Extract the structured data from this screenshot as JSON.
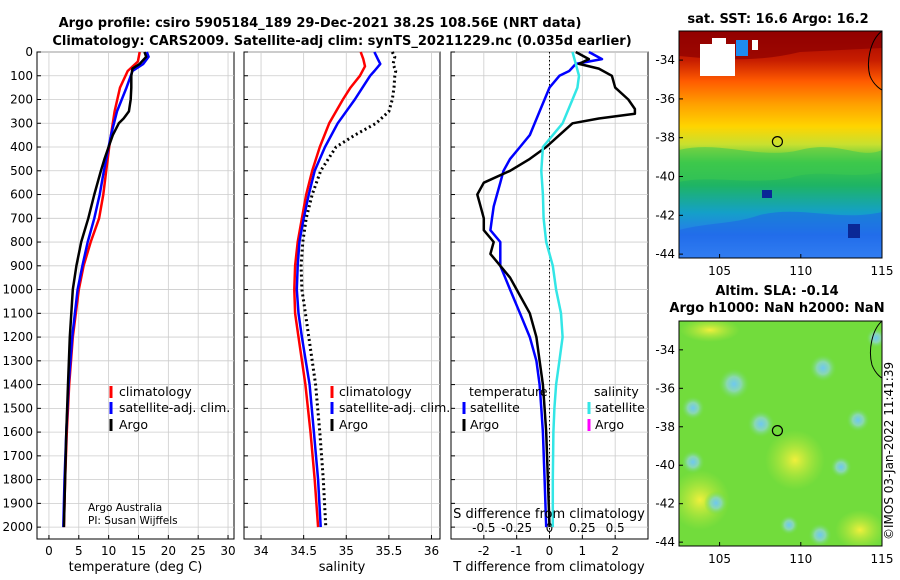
{
  "header": {
    "line1": "Argo profile: csiro 5905184_189 29-Dec-2021 38.2S 108.56E (NRT data)",
    "line2": "Climatology: CARS2009. Satellite-adj clim: synTS_20211229.nc (0.035d earlier)"
  },
  "colors": {
    "climatology": "#ff0000",
    "satellite": "#0000ff",
    "argo": "#000000",
    "sat_salinity": "#33e6e6",
    "argo_salinity": "#ff00ff"
  },
  "credit": {
    "line1": "Argo Australia",
    "line2": "PI: Susan Wijffels"
  },
  "stamp": "©IMOS 03-Jan-2022 11:41:39",
  "chart_data": [
    {
      "id": "temperature",
      "type": "line",
      "xlabel": "temperature (deg C)",
      "xlim": [
        -2,
        31
      ],
      "xticks": [
        0,
        5,
        10,
        15,
        20,
        25,
        30
      ],
      "xtick_labels": [
        "0",
        "5",
        "10",
        "15",
        "20",
        "25",
        "30"
      ],
      "ylim": [
        0,
        2050
      ],
      "yticks": [
        0,
        100,
        200,
        300,
        400,
        500,
        600,
        700,
        800,
        900,
        1000,
        1100,
        1200,
        1300,
        1400,
        1500,
        1600,
        1700,
        1800,
        1900,
        2000
      ],
      "ytick_labels": [
        "0",
        "100",
        "200",
        "300",
        "400",
        "500",
        "600",
        "700",
        "800",
        "900",
        "1000",
        "1100",
        "1200",
        "1300",
        "1400",
        "1500",
        "1600",
        "1700",
        "1800",
        "1900",
        "2000"
      ],
      "legend": [
        "climatology",
        "satellite-adj. clim.",
        "Argo"
      ],
      "series": [
        {
          "name": "climatology",
          "color": "#ff0000",
          "dash": false,
          "depth": [
            0,
            40,
            80,
            150,
            250,
            350,
            400,
            500,
            600,
            700,
            800,
            900,
            1000,
            1200,
            1400,
            1600,
            1800,
            2000
          ],
          "values": [
            15.2,
            14.9,
            13.2,
            11.9,
            11.0,
            10.4,
            10.1,
            9.6,
            9.1,
            8.4,
            7.0,
            5.8,
            5.0,
            4.0,
            3.4,
            3.0,
            2.7,
            2.5
          ]
        },
        {
          "name": "satellite-adj. clim.",
          "color": "#0000ff",
          "dash": false,
          "depth": [
            0,
            20,
            50,
            80,
            150,
            250,
            350,
            400,
            500,
            600,
            700,
            800,
            900,
            1000,
            1200,
            1400,
            1600,
            1800,
            2000
          ],
          "values": [
            16.4,
            16.7,
            15.8,
            14.0,
            13.0,
            11.4,
            10.4,
            10.0,
            9.2,
            8.5,
            7.6,
            6.5,
            5.6,
            4.8,
            3.9,
            3.3,
            2.9,
            2.6,
            2.4
          ]
        },
        {
          "name": "Argo",
          "color": "#000000",
          "dash": false,
          "depth": [
            0,
            20,
            50,
            70,
            100,
            150,
            200,
            250,
            280,
            300,
            350,
            400,
            450,
            500,
            600,
            700,
            800,
            900,
            1000,
            1200,
            1400,
            1600,
            1800,
            2000
          ],
          "values": [
            16.0,
            16.3,
            15.2,
            14.0,
            13.8,
            13.8,
            13.7,
            13.4,
            12.5,
            11.7,
            10.7,
            10.0,
            9.3,
            8.7,
            7.6,
            6.6,
            5.4,
            4.6,
            4.0,
            3.5,
            3.2,
            2.9,
            2.7,
            2.5
          ]
        }
      ]
    },
    {
      "id": "salinity",
      "type": "line",
      "xlabel": "salinity",
      "xlim": [
        33.8,
        36.1
      ],
      "xticks": [
        34,
        34.5,
        35,
        35.5,
        36
      ],
      "xtick_labels": [
        "34",
        "34.5",
        "35",
        "35.5",
        "36"
      ],
      "ylim": [
        0,
        2050
      ],
      "legend": [
        "climatology",
        "satellite-adj. clim.",
        "Argo"
      ],
      "series": [
        {
          "name": "climatology",
          "color": "#ff0000",
          "dash": false,
          "depth": [
            0,
            30,
            60,
            100,
            150,
            200,
            300,
            400,
            500,
            600,
            700,
            800,
            900,
            1000,
            1100,
            1200,
            1400,
            1600,
            1800,
            2000
          ],
          "values": [
            35.17,
            35.2,
            35.22,
            35.16,
            35.05,
            34.96,
            34.8,
            34.69,
            34.6,
            34.53,
            34.48,
            34.43,
            34.4,
            34.39,
            34.4,
            34.44,
            34.52,
            34.58,
            34.63,
            34.67
          ]
        },
        {
          "name": "satellite-adj. clim.",
          "color": "#0000ff",
          "dash": false,
          "depth": [
            0,
            30,
            50,
            80,
            100,
            150,
            200,
            300,
            400,
            500,
            600,
            700,
            800,
            900,
            1000,
            1100,
            1200,
            1400,
            1600,
            1800,
            2000
          ],
          "values": [
            35.33,
            35.37,
            35.4,
            35.33,
            35.28,
            35.19,
            35.1,
            34.9,
            34.75,
            34.63,
            34.56,
            34.5,
            34.45,
            34.43,
            34.42,
            34.44,
            34.48,
            34.57,
            34.62,
            34.67,
            34.7
          ]
        },
        {
          "name": "Argo",
          "color": "#000000",
          "dash": true,
          "depth": [
            0,
            20,
            50,
            80,
            100,
            150,
            200,
            250,
            300,
            350,
            400,
            500,
            600,
            700,
            800,
            900,
            1000,
            1100,
            1200,
            1400,
            1600,
            1800,
            2000
          ],
          "values": [
            35.54,
            35.57,
            35.55,
            35.58,
            35.57,
            35.56,
            35.54,
            35.5,
            35.35,
            35.1,
            34.88,
            34.7,
            34.6,
            34.53,
            34.49,
            34.47,
            34.48,
            34.52,
            34.56,
            34.64,
            34.69,
            34.73,
            34.76
          ]
        }
      ]
    },
    {
      "id": "difference",
      "type": "line",
      "xlabel": "T difference from climatology",
      "xlabel_top": "S difference from climatology",
      "xlim": [
        -3,
        3
      ],
      "xticks": [
        -2,
        -1,
        0,
        1,
        2
      ],
      "xtick_labels": [
        "-2",
        "-1",
        "0",
        "1",
        "2"
      ],
      "sticks": [
        -2,
        -1,
        0,
        1,
        2
      ],
      "stick_labels": [
        "-0.5",
        "-0.25",
        "0",
        "0.25",
        "0.5"
      ],
      "ylim": [
        0,
        2050
      ],
      "legend_t_title": "temperature",
      "legend_s_title": "salinity",
      "legend_t": [
        "satellite",
        "Argo"
      ],
      "legend_s": [
        "satellite",
        "Argo"
      ],
      "series": [
        {
          "name": "T satellite",
          "color": "#0000ff",
          "dash": false,
          "depth": [
            0,
            30,
            50,
            80,
            100,
            150,
            250,
            350,
            400,
            450,
            500,
            550,
            600,
            650,
            700,
            750,
            800,
            850,
            900,
            950,
            1000,
            1100,
            1200,
            1300,
            1400,
            1500,
            1600,
            1800,
            2000
          ],
          "values": [
            1.2,
            1.6,
            0.8,
            0.6,
            0.3,
            0.0,
            -0.3,
            -0.6,
            -0.9,
            -1.2,
            -1.4,
            -1.5,
            -1.6,
            -1.7,
            -1.75,
            -1.8,
            -1.5,
            -1.5,
            -1.5,
            -1.35,
            -1.2,
            -0.9,
            -0.6,
            -0.4,
            -0.3,
            -0.25,
            -0.2,
            -0.15,
            -0.1
          ]
        },
        {
          "name": "T Argo",
          "color": "#000000",
          "dash": false,
          "depth": [
            0,
            30,
            50,
            70,
            100,
            150,
            200,
            240,
            260,
            280,
            300,
            350,
            400,
            450,
            500,
            550,
            600,
            650,
            700,
            750,
            800,
            850,
            900,
            950,
            1000,
            1100,
            1200,
            1300,
            1400,
            1500,
            1600,
            1800,
            2000
          ],
          "values": [
            0.8,
            1.2,
            0.9,
            1.5,
            1.9,
            2.0,
            2.4,
            2.6,
            2.6,
            1.5,
            0.7,
            0.3,
            -0.1,
            -0.6,
            -1.2,
            -2.0,
            -2.2,
            -2.1,
            -2.0,
            -2.0,
            -1.7,
            -1.8,
            -1.5,
            -1.2,
            -1.0,
            -0.6,
            -0.4,
            -0.3,
            -0.2,
            -0.15,
            -0.1,
            -0.05,
            0.0
          ]
        },
        {
          "name": "S satellite",
          "color": "#33e6e6",
          "dash": false,
          "depth": [
            0,
            50,
            100,
            150,
            200,
            300,
            350,
            400,
            500,
            600,
            700,
            800,
            900,
            1000,
            1100,
            1200,
            1300,
            1400,
            1500,
            1600,
            1800,
            2000
          ],
          "values": [
            0.7,
            0.8,
            0.9,
            0.85,
            0.7,
            0.4,
            0.1,
            -0.2,
            -0.25,
            -0.2,
            -0.18,
            -0.1,
            0.1,
            0.2,
            0.35,
            0.4,
            0.3,
            0.2,
            0.15,
            0.12,
            0.1,
            0.1
          ]
        }
      ]
    },
    {
      "id": "sst_map",
      "type": "heatmap",
      "title": "sat. SST: 16.6 Argo: 16.2",
      "xlim": [
        102.5,
        115
      ],
      "ylim": [
        -44.2,
        -32.5
      ],
      "xticks": [
        105,
        110,
        115
      ],
      "xtick_labels": [
        "105",
        "110",
        "115"
      ],
      "yticks": [
        -34,
        -36,
        -38,
        -40,
        -42,
        -44
      ],
      "ytick_labels": [
        "-34",
        "-36",
        "-38",
        "-40",
        "-42",
        "-44"
      ],
      "marker": {
        "lon": 108.56,
        "lat": -38.2
      }
    },
    {
      "id": "sla_map",
      "type": "heatmap",
      "title": "Altim. SLA: -0.14",
      "subtitle": "Argo h1000: NaN h2000: NaN",
      "xlim": [
        102.5,
        115
      ],
      "ylim": [
        -44.2,
        -32.5
      ],
      "xticks": [
        105,
        110,
        115
      ],
      "xtick_labels": [
        "105",
        "110",
        "115"
      ],
      "yticks": [
        -34,
        -36,
        -38,
        -40,
        -42,
        -44
      ],
      "ytick_labels": [
        "-34",
        "-36",
        "-38",
        "-40",
        "-42",
        "-44"
      ],
      "marker": {
        "lon": 108.56,
        "lat": -38.2
      }
    }
  ]
}
